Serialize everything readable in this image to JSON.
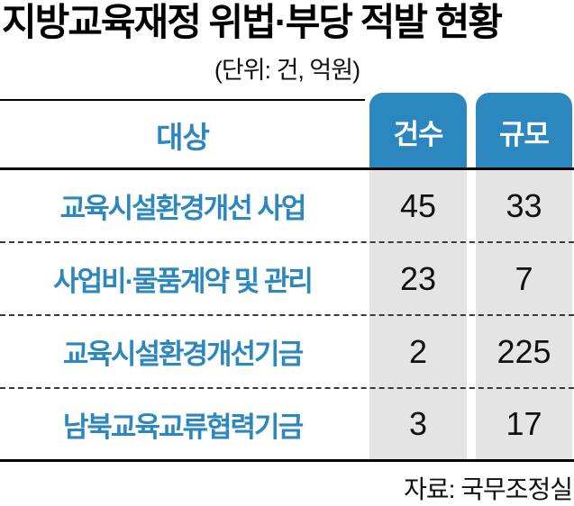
{
  "title": "지방교육재정 위법·부당 적발 현황",
  "unit_note": "(단위: 건, 억원)",
  "table": {
    "col_target": "대상",
    "col_count": "건수",
    "col_scale": "규모",
    "rows": [
      {
        "label": "교육시설환경개선 사업",
        "count": "45",
        "scale": "33"
      },
      {
        "label": "사업비·물품계약 및 관리",
        "count": "23",
        "scale": "7"
      },
      {
        "label": "교육시설환경개선기금",
        "count": "2",
        "scale": "225"
      },
      {
        "label": "남북교육교류협력기금",
        "count": "3",
        "scale": "17"
      }
    ]
  },
  "source": "자료: 국무조정실",
  "colors": {
    "accent_blue": "#2b87bd",
    "cell_gray": "#e4e4e4",
    "text_black": "#000000"
  },
  "chart_data": {
    "type": "table",
    "title": "지방교육재정 위법·부당 적발 현황",
    "unit": "건, 억원",
    "columns": [
      "대상",
      "건수",
      "규모"
    ],
    "rows": [
      [
        "교육시설환경개선 사업",
        45,
        33
      ],
      [
        "사업비·물품계약 및 관리",
        23,
        7
      ],
      [
        "교육시설환경개선기금",
        2,
        225
      ],
      [
        "남북교육교류협력기금",
        3,
        17
      ]
    ],
    "source": "국무조정실",
    "layout": "header row with blue rounded tabs over gray value columns; dashed row separators; solid top and bottom rules"
  }
}
